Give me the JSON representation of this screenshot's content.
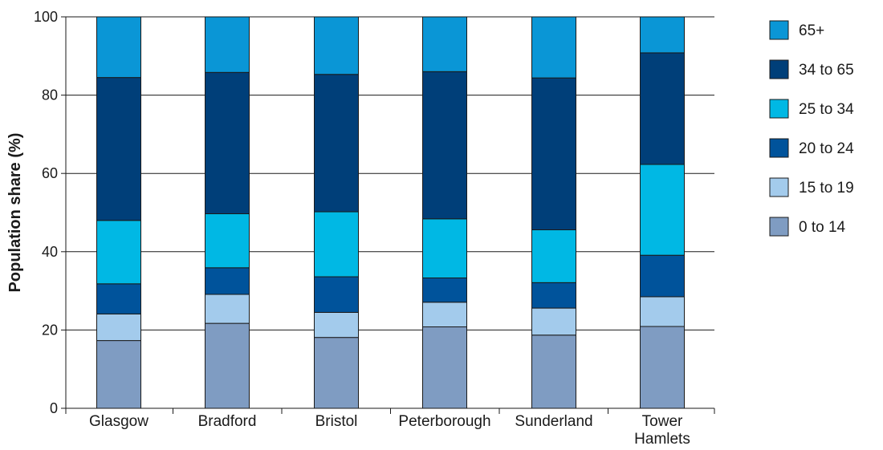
{
  "chart_data": {
    "type": "bar",
    "stacked": true,
    "ylabel": "Population share (%)",
    "xlabel": "",
    "ylim": [
      0,
      100
    ],
    "yticks": [
      0,
      20,
      40,
      60,
      80,
      100
    ],
    "grid": true,
    "legend_position": "right",
    "categories": [
      [
        "Glasgow"
      ],
      [
        "Bradford"
      ],
      [
        "Bristol"
      ],
      [
        "Peterborough"
      ],
      [
        "Sunderland"
      ],
      [
        "Tower",
        "Hamlets"
      ]
    ],
    "series": [
      {
        "name": "0 to 14",
        "color": "#7f9cc2",
        "values": [
          17.3,
          21.7,
          18.1,
          20.8,
          18.7,
          20.9
        ]
      },
      {
        "name": "15 to 19",
        "color": "#a3cbec",
        "values": [
          6.8,
          7.4,
          6.4,
          6.3,
          6.9,
          7.6
        ]
      },
      {
        "name": "20 to 24",
        "color": "#00539b",
        "values": [
          7.7,
          6.8,
          9.1,
          6.2,
          6.5,
          10.6
        ]
      },
      {
        "name": "25 to 34",
        "color": "#00b8e4",
        "values": [
          16.2,
          13.8,
          16.6,
          15.1,
          13.5,
          23.2
        ]
      },
      {
        "name": "34 to 65",
        "color": "#003f79",
        "values": [
          36.5,
          36.1,
          35.1,
          37.6,
          38.8,
          28.5
        ]
      },
      {
        "name": "65+",
        "color": "#0a96d6",
        "values": [
          15.5,
          14.2,
          14.7,
          14.0,
          15.6,
          9.2
        ]
      }
    ]
  }
}
